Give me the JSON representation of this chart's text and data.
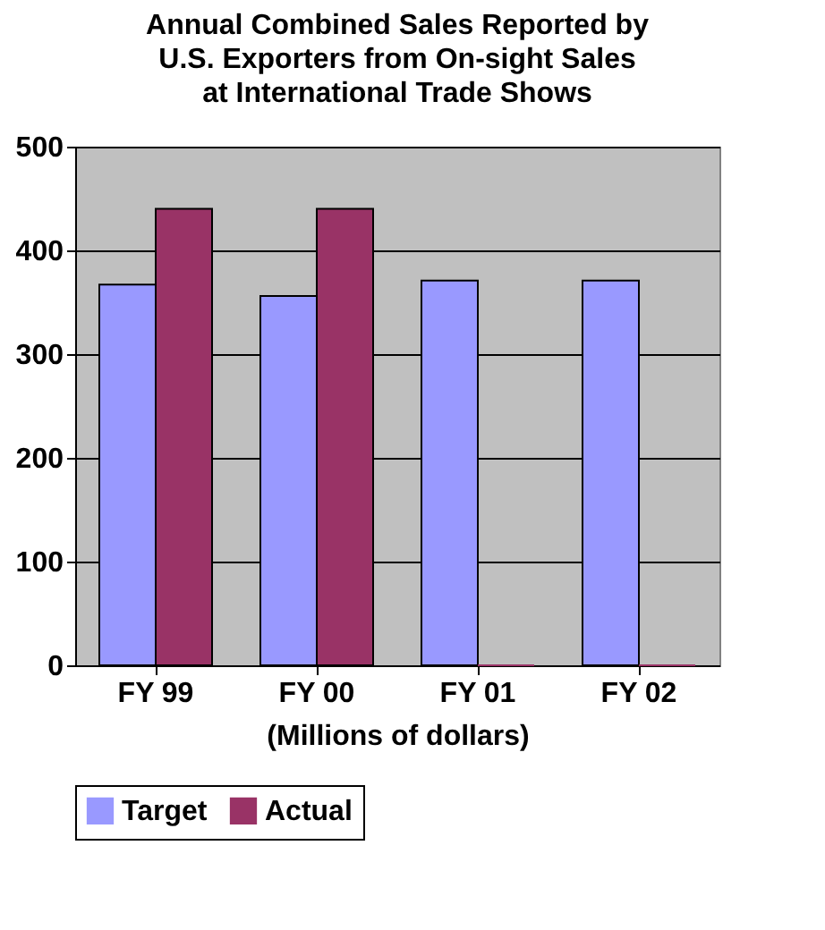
{
  "chart_data": {
    "type": "bar",
    "title": "Annual Combined Sales Reported by U.S. Exporters from On-sight Sales at International Trade Shows",
    "xlabel": "(Millions of dollars)",
    "categories": [
      "FY 99",
      "FY 00",
      "FY 01",
      "FY 02"
    ],
    "series": [
      {
        "name": "Target",
        "color": "#9999ff",
        "values": [
          367,
          356,
          371,
          371
        ]
      },
      {
        "name": "Actual",
        "color": "#993366",
        "values": [
          440,
          440,
          0,
          0
        ]
      }
    ],
    "ylim": [
      0,
      500
    ],
    "yticks": [
      0,
      100,
      200,
      300,
      400,
      500
    ],
    "grid": "y",
    "legend": "bottom"
  }
}
